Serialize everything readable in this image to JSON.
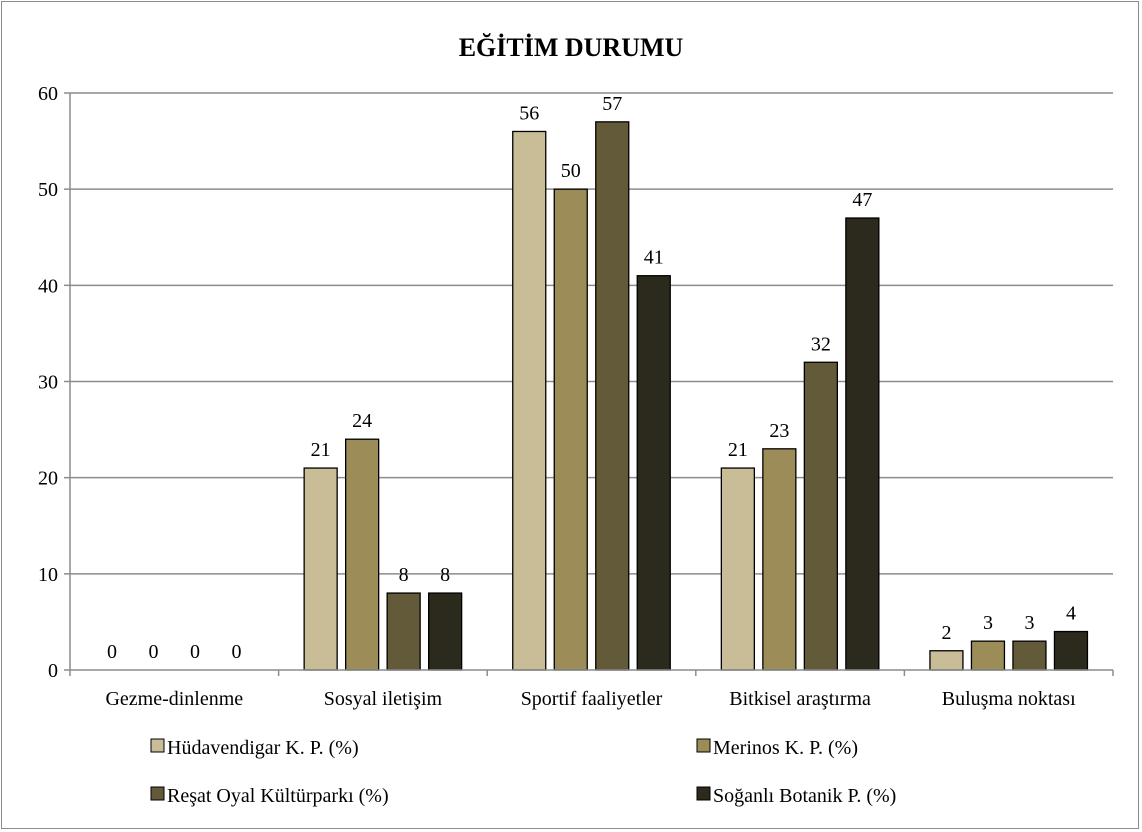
{
  "chart_data": {
    "type": "bar",
    "title": "EĞİTİM DURUMU",
    "xlabel": "",
    "ylabel": "",
    "ylim": [
      0,
      60
    ],
    "yticks": [
      0,
      10,
      20,
      30,
      40,
      50,
      60
    ],
    "grid": true,
    "legend_position": "bottom",
    "categories": [
      "Gezme-dinlenme",
      "Sosyal iletişim",
      "Sportif faaliyetler",
      "Bitkisel araştırma",
      "Buluşma noktası"
    ],
    "series": [
      {
        "name": "Hüdavendigar K. P. (%)",
        "color": "#c9bd98",
        "values": [
          0,
          21,
          56,
          21,
          2
        ]
      },
      {
        "name": "Merinos K. P. (%)",
        "color": "#9c8c58",
        "values": [
          0,
          24,
          50,
          23,
          3
        ]
      },
      {
        "name": "Reşat Oyal Kültürparkı (%)",
        "color": "#635a3a",
        "values": [
          0,
          8,
          57,
          32,
          3
        ]
      },
      {
        "name": "Soğanlı Botanik P.  (%)",
        "color": "#2c2a1c",
        "values": [
          0,
          8,
          41,
          47,
          4
        ]
      }
    ]
  }
}
